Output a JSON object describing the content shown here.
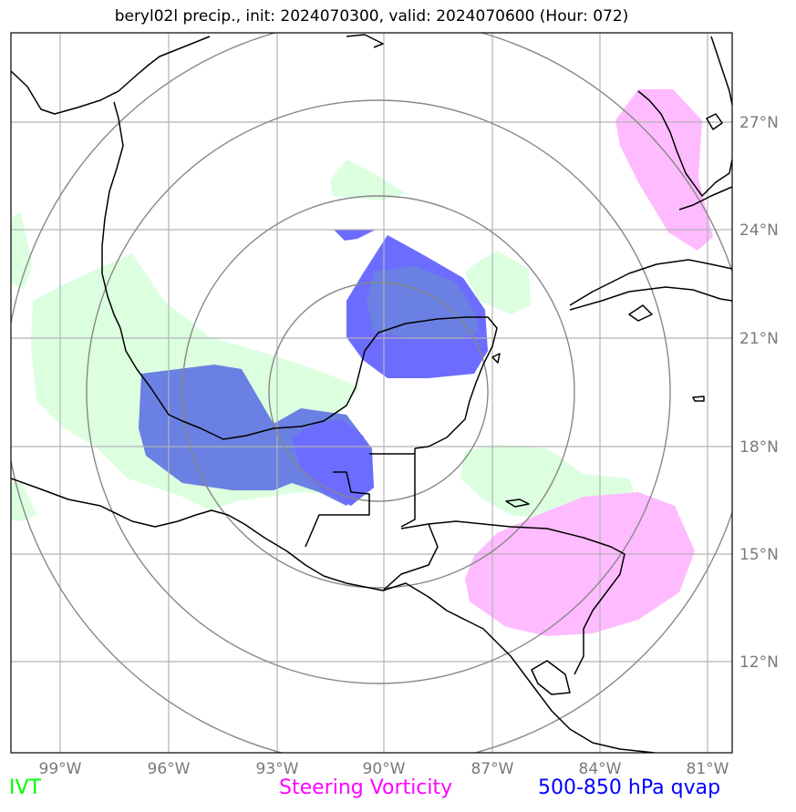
{
  "title": "beryl02l precip., init: 2024070300, valid: 2024070600 (Hour: 072)",
  "lon_labels": [
    "99°W",
    "96°W",
    "93°W",
    "90°W",
    "87°W",
    "84°W",
    "81°W"
  ],
  "lat_labels": [
    "27°N",
    "24°N",
    "21°N",
    "18°N",
    "15°N",
    "12°N"
  ],
  "legend": {
    "ivt": {
      "label": "IVT",
      "color": "#00ff00"
    },
    "vorticity": {
      "label": "Steering Vorticity",
      "color": "#ff00ff"
    },
    "qvap": {
      "label": "500-850 hPa qvap",
      "color": "#0000ff"
    }
  },
  "fills": {
    "ivt": "#dcffe0",
    "vorticity": "#ffbbff",
    "qvap": "#6c6cff",
    "overlap": "#6a80e2"
  }
}
